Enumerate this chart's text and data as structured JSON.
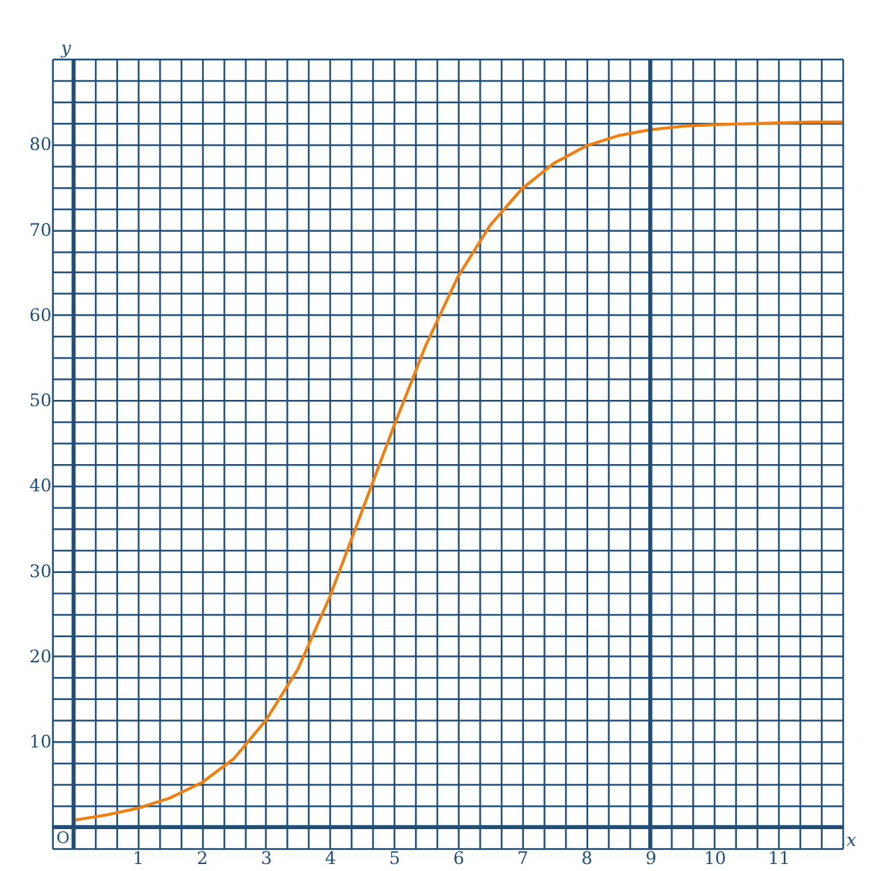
{
  "chart_data": {
    "type": "line",
    "xlabel": "x",
    "ylabel": "y",
    "annotations": [
      "O"
    ],
    "x": [
      0,
      0.5,
      1,
      1.5,
      2,
      2.5,
      3,
      3.5,
      4,
      4.5,
      5,
      5.5,
      6,
      6.5,
      7,
      7.5,
      8,
      8.5,
      9,
      9.5,
      10,
      10.5,
      11,
      11.5,
      12
    ],
    "series": [
      {
        "color": "#f07f0f",
        "values": [
          0.8,
          1.4,
          2.2,
          3.4,
          5.2,
          8,
          12.5,
          18.5,
          27,
          37,
          47,
          56.5,
          64.5,
          70.5,
          74.8,
          77.8,
          79.8,
          81,
          81.7,
          82.1,
          82.3,
          82.4,
          82.5,
          82.6,
          82.6
        ]
      }
    ],
    "xlim": [
      -0.3333,
      12
    ],
    "ylim": [
      -2.5,
      90
    ],
    "xticks": [
      {
        "value": -0.3333,
        "label": null
      },
      {
        "value": 0.3333,
        "label": null
      },
      {
        "value": 0.6667,
        "label": null
      },
      1,
      {
        "value": 1.3333,
        "label": null
      },
      {
        "value": 1.6667,
        "label": null
      },
      2,
      {
        "value": 2.3333,
        "label": null
      },
      {
        "value": 2.6667,
        "label": null
      },
      3,
      {
        "value": 3.3333,
        "label": null
      },
      {
        "value": 3.6667,
        "label": null
      },
      4,
      {
        "value": 4.3333,
        "label": null
      },
      {
        "value": 4.6667,
        "label": null
      },
      5,
      {
        "value": 5.3333,
        "label": null
      },
      {
        "value": 5.6667,
        "label": null
      },
      6,
      {
        "value": 6.3333,
        "label": null
      },
      {
        "value": 6.6667,
        "label": null
      },
      7,
      {
        "value": 7.3333,
        "label": null
      },
      {
        "value": 7.6667,
        "label": null
      },
      8,
      {
        "value": 8.3333,
        "label": null
      },
      {
        "value": 8.6667,
        "label": null
      },
      9,
      {
        "value": 9.3333,
        "label": null
      },
      {
        "value": 9.6667,
        "label": null
      },
      10,
      {
        "value": 10.3333,
        "label": null
      },
      {
        "value": 10.6667,
        "label": null
      },
      11,
      {
        "value": 11.3333,
        "label": null
      },
      {
        "value": 11.6667,
        "label": null
      },
      {
        "value": 12,
        "label": null
      }
    ],
    "yticks": [
      {
        "value": -2.5,
        "label": null
      },
      {
        "value": 2.5,
        "label": null
      },
      {
        "value": 5,
        "label": null
      },
      {
        "value": 7.5,
        "label": null
      },
      10,
      {
        "value": 12.5,
        "label": null
      },
      {
        "value": 15,
        "label": null
      },
      {
        "value": 17.5,
        "label": null
      },
      20,
      {
        "value": 22.5,
        "label": null
      },
      {
        "value": 25,
        "label": null
      },
      {
        "value": 27.5,
        "label": null
      },
      30,
      {
        "value": 32.5,
        "label": null
      },
      {
        "value": 35,
        "label": null
      },
      {
        "value": 37.5,
        "label": null
      },
      40,
      {
        "value": 42.5,
        "label": null
      },
      {
        "value": 45,
        "label": null
      },
      {
        "value": 47.5,
        "label": null
      },
      50,
      {
        "value": 52.5,
        "label": null
      },
      {
        "value": 55,
        "label": null
      },
      {
        "value": 57.5,
        "label": null
      },
      60,
      {
        "value": 62.5,
        "label": null
      },
      {
        "value": 65,
        "label": null
      },
      {
        "value": 67.5,
        "label": null
      },
      70,
      {
        "value": 72.5,
        "label": null
      },
      {
        "value": 75,
        "label": null
      },
      {
        "value": 77.5,
        "label": null
      },
      80,
      {
        "value": 82.5,
        "label": null
      },
      {
        "value": 85,
        "label": null
      },
      {
        "value": 87.5,
        "label": null
      },
      {
        "value": 90,
        "label": null
      }
    ],
    "ref_lines": [
      {
        "axis": "x",
        "value": 0,
        "color": "#1f4e79"
      },
      {
        "axis": "y",
        "value": 0,
        "color": "#1f4e79"
      },
      {
        "axis": "x",
        "value": 9,
        "color": "#1f4e79"
      }
    ],
    "grid": true,
    "marker": "none",
    "line_style": "solid"
  }
}
